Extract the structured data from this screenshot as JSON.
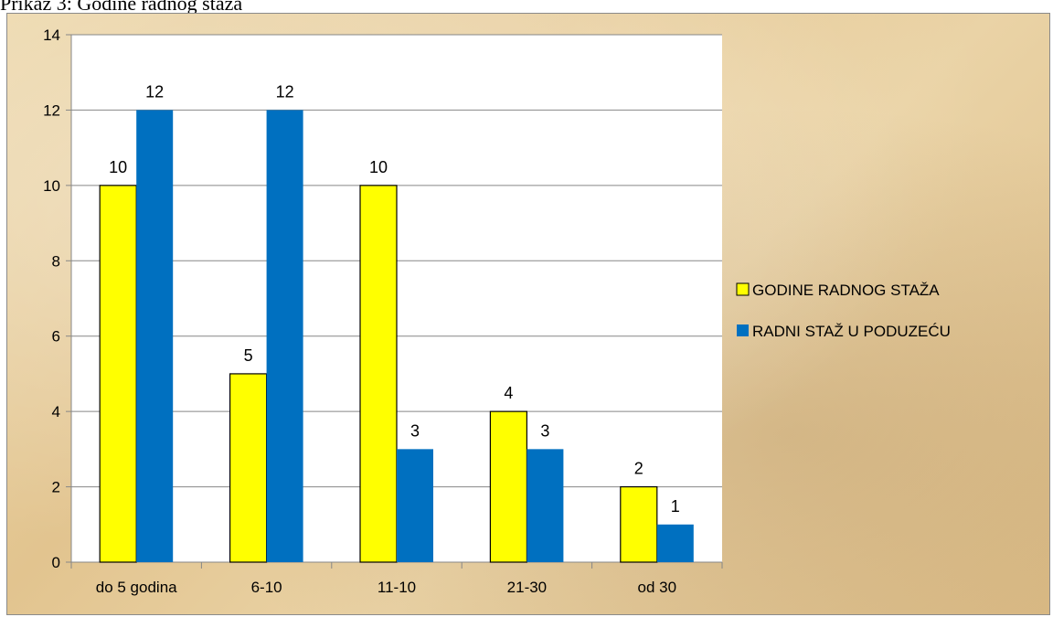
{
  "caption": "Prikaz 3: Godine radnog staža",
  "chart_data": {
    "type": "bar",
    "title": "",
    "xlabel": "",
    "ylabel": "",
    "categories": [
      "do 5 godina",
      "6-10",
      "11-10",
      "21-30",
      "od 30"
    ],
    "series": [
      {
        "name": "GODINE RADNOG STAŽA",
        "values": [
          10,
          5,
          10,
          4,
          2
        ],
        "color": "#ffff00"
      },
      {
        "name": "RADNI STAŽ U PODUZEĆU",
        "values": [
          12,
          12,
          3,
          3,
          1
        ],
        "color": "#0070c0"
      }
    ],
    "ylim": [
      0,
      14
    ],
    "yticks": [
      0,
      2,
      4,
      6,
      8,
      10,
      12,
      14
    ],
    "grid": true,
    "legend": "right"
  }
}
